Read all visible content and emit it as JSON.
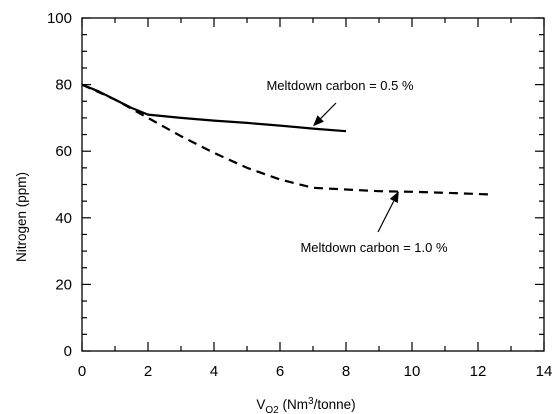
{
  "chart_data": {
    "type": "line",
    "xlabel_main": "V",
    "xlabel_sub": "O2",
    "xlabel_rest": " (Nm",
    "xlabel_sup": "3",
    "xlabel_end": "/tonne)",
    "ylabel": "Nitrogen (ppm)",
    "xlim": [
      0,
      14
    ],
    "ylim": [
      0,
      100
    ],
    "xticks": [
      0,
      2,
      4,
      6,
      8,
      10,
      12,
      14
    ],
    "yticks": [
      0,
      20,
      40,
      60,
      80,
      100
    ],
    "xtick_labels": [
      "0",
      "2",
      "4",
      "6",
      "8",
      "10",
      "12",
      "14"
    ],
    "ytick_labels": [
      "0",
      "20",
      "40",
      "60",
      "80",
      "100"
    ],
    "grid": false,
    "series": [
      {
        "name": "Meltdown carbon = 0.5 %",
        "style": "solid",
        "x": [
          0,
          0.5,
          1.0,
          1.5,
          2.0,
          3.0,
          4.0,
          5.0,
          6.0,
          7.0,
          8.0
        ],
        "y": [
          80,
          78,
          75.5,
          73,
          71,
          70,
          69.2,
          68.5,
          67.7,
          66.8,
          66
        ]
      },
      {
        "name": "Meltdown carbon = 1.0 %",
        "style": "dashed",
        "x": [
          0,
          1.0,
          2.0,
          3.0,
          4.0,
          5.0,
          6.0,
          7.0,
          8.0,
          9.0,
          10.0,
          11.0,
          12.4
        ],
        "y": [
          80,
          75.5,
          70,
          64.5,
          59.5,
          55,
          51.5,
          49,
          48.5,
          48,
          47.8,
          47.5,
          47
        ]
      }
    ],
    "annotations": [
      {
        "text": "Meltdown carbon = 0.5 %",
        "arrow_to": [
          7.0,
          67.5
        ]
      },
      {
        "text": "Meltdown carbon = 1.0 %",
        "arrow_to": [
          9.6,
          48
        ]
      }
    ]
  }
}
